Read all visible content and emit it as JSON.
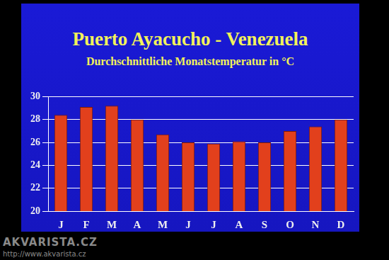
{
  "chart_data": {
    "type": "bar",
    "title": "Puerto Ayacucho - Venezuela",
    "subtitle": "Durchschnittliche Monatstemperatur in °C",
    "annotations": [
      "AKVARISTA.CZ",
      "http://www.akvarista.cz"
    ],
    "categories": [
      "J",
      "F",
      "M",
      "A",
      "M",
      "J",
      "J",
      "A",
      "S",
      "O",
      "N",
      "D"
    ],
    "values": [
      28.4,
      29.1,
      29.2,
      28.0,
      26.7,
      26.0,
      25.9,
      26.1,
      26.0,
      27.0,
      27.4,
      28.0
    ],
    "color": "#e2401c",
    "ylim": [
      20,
      30
    ],
    "yticks": [
      20,
      22,
      24,
      26,
      28,
      30
    ],
    "grid": true
  }
}
